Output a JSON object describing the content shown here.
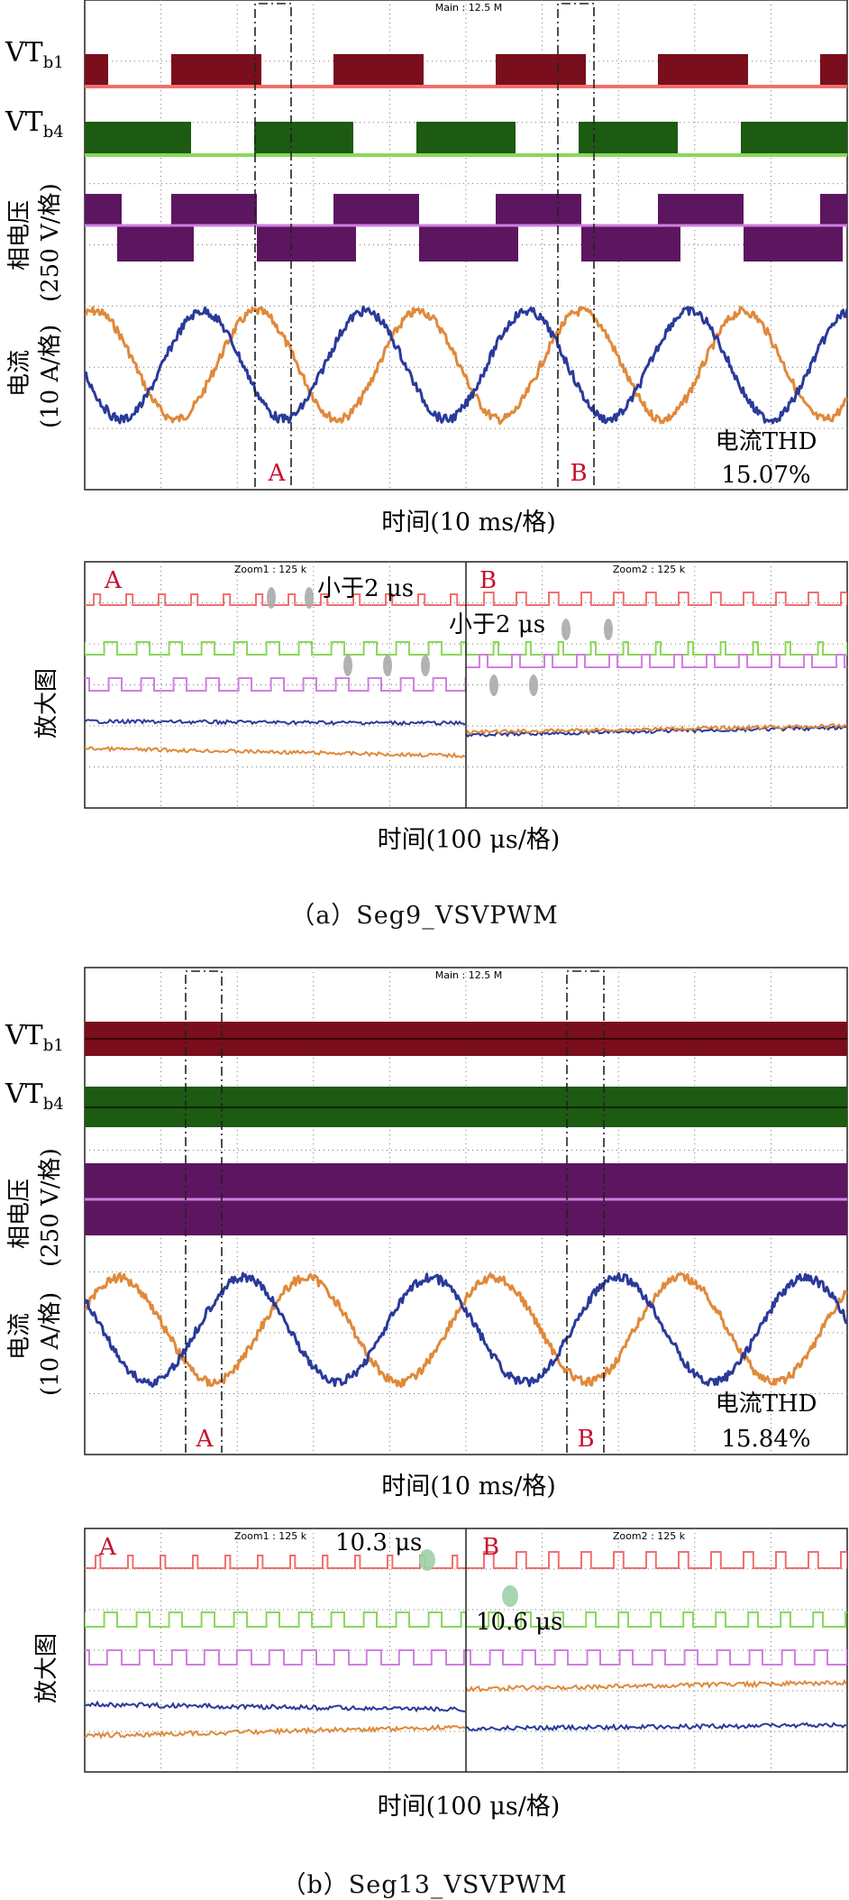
{
  "figure_a": {
    "caption": "（a）Seg9_VSVPWM",
    "main": {
      "header": "Main : 12.5 M",
      "labels": {
        "vtb1_base": "VT",
        "vtb1_sub": "b1",
        "vtb4_base": "VT",
        "vtb4_sub": "b4",
        "voltage_1": "相电压",
        "voltage_2": "(250 V/格)",
        "current_1": "电流",
        "current_2": "(10 A/格)"
      },
      "xlabel": "时间(10 ms/格)",
      "marker_a": "A",
      "marker_b": "B",
      "thd_label": "电流THD",
      "thd_value": "15.07%"
    },
    "zoom": {
      "ylabel": "放大图",
      "xlabel": "时间(100 μs/格)",
      "zoom1_header": "Zoom1 : 125 k",
      "zoom2_header": "Zoom2 : 125 k",
      "label_a": "A",
      "label_b": "B",
      "annotation_1": "小于2 μs",
      "annotation_2": "小于2 μs"
    }
  },
  "figure_b": {
    "caption": "（b）Seg13_VSVPWM",
    "main": {
      "header": "Main : 12.5 M",
      "labels": {
        "vtb1_base": "VT",
        "vtb1_sub": "b1",
        "vtb4_base": "VT",
        "vtb4_sub": "b4",
        "voltage_1": "相电压",
        "voltage_2": "(250 V/格)",
        "current_1": "电流",
        "current_2": "(10 A/格)"
      },
      "xlabel": "时间(10 ms/格)",
      "marker_a": "A",
      "marker_b": "B",
      "thd_label": "电流THD",
      "thd_value": "15.84%"
    },
    "zoom": {
      "ylabel": "放大图",
      "xlabel": "时间(100 μs/格)",
      "zoom1_header": "Zoom1 : 125 k",
      "zoom2_header": "Zoom2 : 125 k",
      "label_a": "A",
      "label_b": "B",
      "annotation_1": "10.3 μs",
      "annotation_2": "10.6 μs"
    }
  },
  "chart_data": [
    {
      "type": "line",
      "name": "Seg9_VSVPWM main",
      "xlabel": "时间(10 ms/格)",
      "x_divisions": 10,
      "traces": [
        "VTb1",
        "VTb4",
        "相电压",
        "电流"
      ],
      "current_thd_percent": 15.07
    },
    {
      "type": "line",
      "name": "Seg9_VSVPWM zoom",
      "xlabel": "时间(100 μs/格)",
      "x_divisions": 10,
      "annotations": [
        "小于2 μs",
        "小于2 μs"
      ]
    },
    {
      "type": "line",
      "name": "Seg13_VSVPWM main",
      "xlabel": "时间(10 ms/格)",
      "x_divisions": 10,
      "traces": [
        "VTb1",
        "VTb4",
        "相电压",
        "电流"
      ],
      "current_thd_percent": 15.84
    },
    {
      "type": "line",
      "name": "Seg13_VSVPWM zoom",
      "xlabel": "时间(100 μs/格)",
      "x_divisions": 10,
      "annotations": [
        "10.3 μs",
        "10.6 μs"
      ]
    }
  ],
  "colors": {
    "vtb1": "#7a0e1c",
    "vtb1_line": "#f07070",
    "vtb4": "#1d5a12",
    "vtb4_line": "#8ad85a",
    "voltage": "#5c1660",
    "voltage_line": "#d080e0",
    "current_blue": "#2a3a9a",
    "current_orange": "#e0893a",
    "marker_red": "#c8102e",
    "grid": "#777777"
  }
}
